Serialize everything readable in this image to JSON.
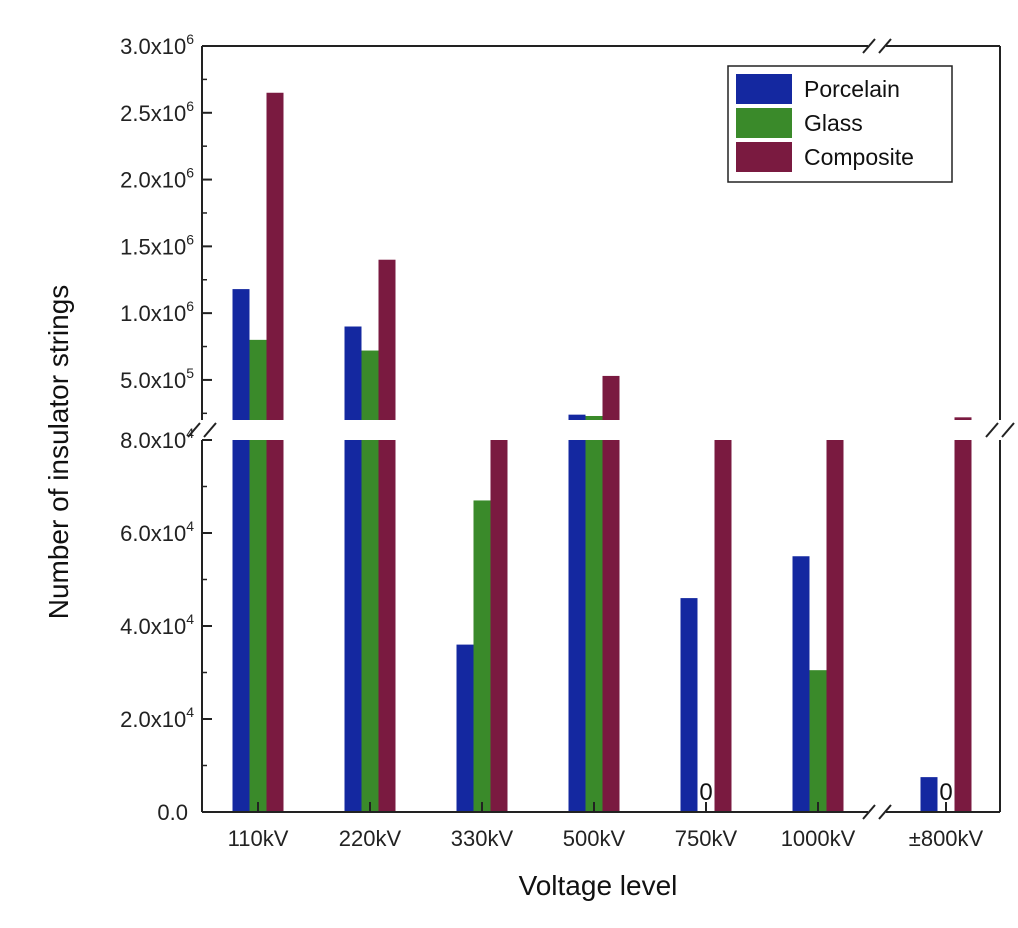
{
  "chart_data": {
    "type": "bar",
    "xlabel": "Voltage level",
    "ylabel": "Number of insulator strings",
    "categories": [
      "110kV",
      "220kV",
      "330kV",
      "500kV",
      "750kV",
      "1000kV",
      "±800kV"
    ],
    "series": [
      {
        "name": "Porcelain",
        "color": "#1428a0",
        "values": [
          1180000,
          900000,
          36000,
          240000,
          46000,
          55000,
          7500
        ]
      },
      {
        "name": "Glass",
        "color": "#3a8a2a",
        "values": [
          800000,
          720000,
          67000,
          230000,
          0,
          30500,
          0
        ]
      },
      {
        "name": "Composite",
        "color": "#7a1a40",
        "values": [
          2650000,
          1400000,
          80000,
          530000,
          80000,
          80000,
          220000
        ]
      }
    ],
    "zero_labels": [
      {
        "category": "750kV",
        "series": "Glass",
        "text": "0"
      },
      {
        "category": "±800kV",
        "series": "Glass",
        "text": "0"
      }
    ],
    "broken_y_axis": true,
    "lower_ylim": [
      0,
      80000
    ],
    "lower_yticks": [
      {
        "value": 0,
        "mantissa": "0.0",
        "exp": ""
      },
      {
        "value": 20000,
        "mantissa": "2.0x10",
        "exp": "4"
      },
      {
        "value": 40000,
        "mantissa": "4.0x10",
        "exp": "4"
      },
      {
        "value": 60000,
        "mantissa": "6.0x10",
        "exp": "4"
      },
      {
        "value": 80000,
        "mantissa": "8.0x10",
        "exp": "4"
      }
    ],
    "upper_ylim": [
      200000,
      3000000
    ],
    "upper_yticks": [
      {
        "value": 500000,
        "mantissa": "5.0x10",
        "exp": "5"
      },
      {
        "value": 1000000,
        "mantissa": "1.0x10",
        "exp": "6"
      },
      {
        "value": 1500000,
        "mantissa": "1.5x10",
        "exp": "6"
      },
      {
        "value": 2000000,
        "mantissa": "2.0x10",
        "exp": "6"
      },
      {
        "value": 2500000,
        "mantissa": "2.5x10",
        "exp": "6"
      },
      {
        "value": 3000000,
        "mantissa": "3.0x10",
        "exp": "6"
      }
    ],
    "broken_x_axis_before": "±800kV",
    "legend_position": "top-right",
    "grid": false
  }
}
